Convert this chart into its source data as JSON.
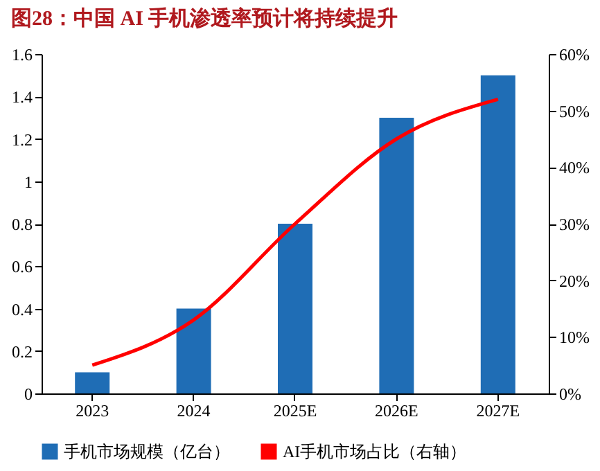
{
  "chart_data": {
    "type": "bar",
    "title": "图28：中国 AI 手机渗透率预计将持续提升",
    "categories": [
      "2023",
      "2024",
      "2025E",
      "2026E",
      "2027E"
    ],
    "series": [
      {
        "name": "手机市场规模（亿台）",
        "color": "#1f6db5",
        "values": [
          0.1,
          0.4,
          0.8,
          1.3,
          1.5
        ]
      },
      {
        "name": "AI手机市场占比（右轴）",
        "type": "line",
        "axis": "y2",
        "color": "#ff0000",
        "values": [
          5,
          13,
          30,
          45,
          52
        ]
      }
    ],
    "ylim": [
      0,
      1.6
    ],
    "yticks": [
      0,
      0.2,
      0.4,
      0.6,
      0.8,
      1,
      1.2,
      1.4,
      1.6
    ],
    "y2lim": [
      0,
      60
    ],
    "y2ticks": [
      {
        "value": 0,
        "label": "0%"
      },
      {
        "value": 10,
        "label": "10%"
      },
      {
        "value": 20,
        "label": "20%"
      },
      {
        "value": 30,
        "label": "30%"
      },
      {
        "value": 40,
        "label": "40%"
      },
      {
        "value": 50,
        "label": "50%"
      },
      {
        "value": 60,
        "label": "60%"
      }
    ],
    "legend": "bottom",
    "grid": false
  }
}
